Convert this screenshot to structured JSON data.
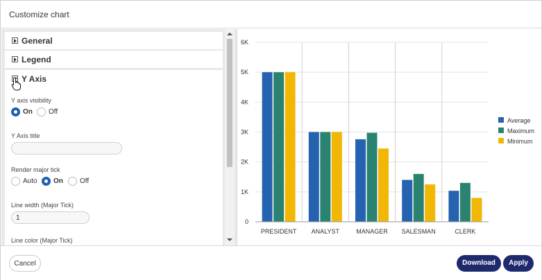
{
  "dialog": {
    "title": "Customize chart"
  },
  "sections": [
    {
      "label": "General",
      "expanded": false
    },
    {
      "label": "Legend",
      "expanded": false
    },
    {
      "label": "Y Axis",
      "expanded": true
    }
  ],
  "yaxis": {
    "visibility": {
      "label": "Y axis visibility",
      "options": [
        "On",
        "Off"
      ],
      "selected": "On"
    },
    "title": {
      "label": "Y Axis title",
      "value": ""
    },
    "major_tick": {
      "label": "Render major tick",
      "options": [
        "Auto",
        "On",
        "Off"
      ],
      "selected": "On"
    },
    "line_width": {
      "label": "Line width (Major Tick)",
      "value": "1"
    },
    "line_color": {
      "label": "Line color (Major Tick)"
    }
  },
  "footer": {
    "cancel": "Cancel",
    "download": "Download",
    "apply": "Apply"
  },
  "icons": {
    "cursor": "hand-pointer-icon",
    "expand": "triangle-expand-icon"
  },
  "colors": {
    "accent": "#1f2a6e",
    "radio": "#1f5fb3"
  },
  "chart_data": {
    "type": "bar",
    "categories": [
      "PRESIDENT",
      "ANALYST",
      "MANAGER",
      "SALESMAN",
      "CLERK"
    ],
    "series": [
      {
        "name": "Average",
        "color": "#2563b0",
        "values": [
          5000,
          3000,
          2758,
          1400,
          1037
        ]
      },
      {
        "name": "Maximum",
        "color": "#2a8371",
        "values": [
          5000,
          3000,
          2975,
          1600,
          1300
        ]
      },
      {
        "name": "Minimum",
        "color": "#f2b705",
        "values": [
          5000,
          3000,
          2450,
          1250,
          800
        ]
      }
    ],
    "y_ticks": [
      "0",
      "1K",
      "2K",
      "3K",
      "4K",
      "5K",
      "6K"
    ],
    "ylim": [
      0,
      6000
    ],
    "legend_position": "right",
    "grid": true
  }
}
